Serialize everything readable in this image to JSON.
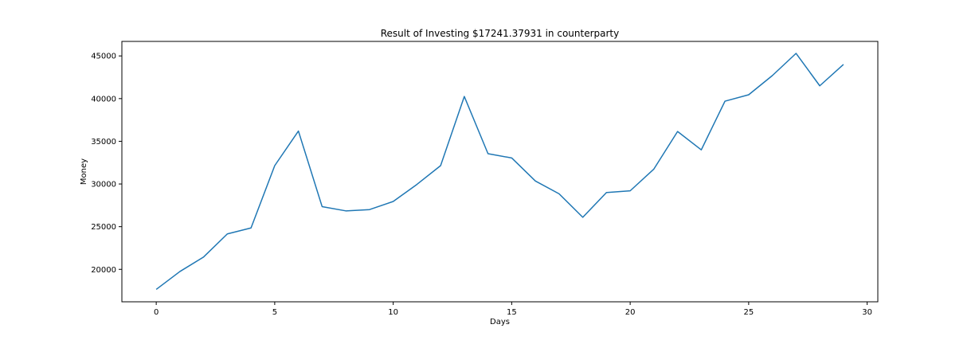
{
  "chart_data": {
    "type": "line",
    "title": "Result of Investing $17241.37931 in counterparty",
    "xlabel": "Days",
    "ylabel": "Money",
    "xlim": [
      -1.45,
      30.45
    ],
    "ylim": [
      16200,
      46700
    ],
    "x_ticks": [
      0,
      5,
      10,
      15,
      20,
      25,
      30
    ],
    "y_ticks": [
      20000,
      25000,
      30000,
      35000,
      40000,
      45000
    ],
    "grid": false,
    "legend": "none",
    "series": [
      {
        "color": "#1f77b4",
        "x": [
          0,
          1,
          2,
          3,
          4,
          5,
          6,
          7,
          8,
          9,
          10,
          11,
          12,
          13,
          14,
          15,
          16,
          17,
          18,
          19,
          20,
          21,
          22,
          23,
          24,
          25,
          26,
          27,
          28,
          29
        ],
        "values": [
          17650,
          19750,
          21450,
          24150,
          24850,
          32150,
          36200,
          27350,
          26850,
          27000,
          27950,
          29950,
          32150,
          40250,
          33550,
          33050,
          30350,
          28850,
          26100,
          29000,
          29200,
          31750,
          36150,
          34000,
          39700,
          40450,
          42700,
          45300,
          41500,
          44000
        ]
      }
    ]
  }
}
